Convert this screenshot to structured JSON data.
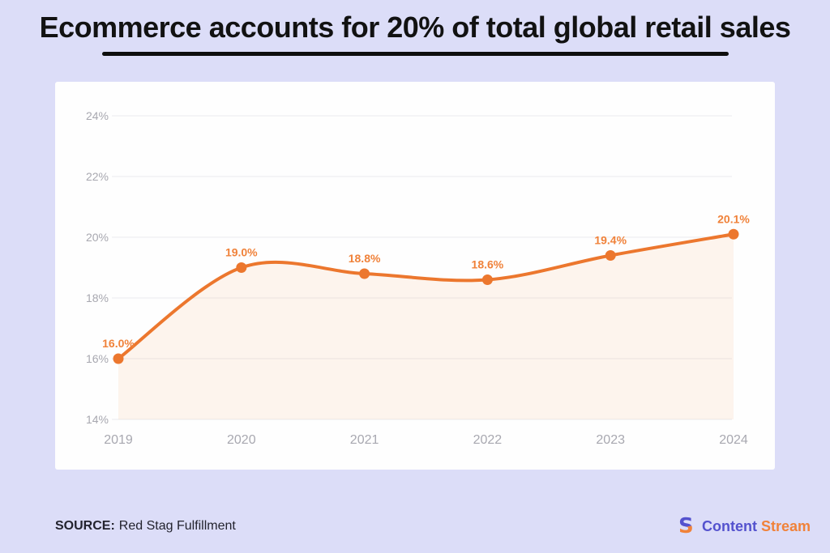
{
  "title": "Ecommerce accounts for 20% of total global retail sales",
  "footer": {
    "source_label": "SOURCE:",
    "source_value": "Red Stag Fulfillment",
    "brand_icon_glyph": "S",
    "brand_word1": "Content",
    "brand_word2": "Stream"
  },
  "colors": {
    "background": "#dcddf8",
    "card": "#fefefe",
    "accent_orange": "#EC772E",
    "label_orange": "#F0823A",
    "area_fill": "rgba(236,122,44,0.08)",
    "axis_text": "#A8A8B0",
    "gridline": "#EFEFF2",
    "title_text": "#121212",
    "brand_indigo": "#5452CE",
    "brand_orange": "#F0823A"
  },
  "chart_data": {
    "type": "line",
    "title": "Ecommerce share of total global retail sales",
    "x": [
      "2019",
      "2020",
      "2021",
      "2022",
      "2023",
      "2024"
    ],
    "values": [
      16.0,
      19.0,
      18.8,
      18.6,
      19.4,
      20.1
    ],
    "point_labels": [
      "16.0%",
      "19.0%",
      "18.8%",
      "18.6%",
      "19.4%",
      "20.1%"
    ],
    "xlabel": "",
    "ylabel": "",
    "ylim": [
      14,
      25
    ],
    "yticks": [
      14,
      16,
      18,
      20,
      22,
      24
    ],
    "ytick_labels": [
      "14%",
      "16%",
      "18%",
      "20%",
      "22%",
      "24%"
    ],
    "grid": true,
    "area_fill": true,
    "legend_position": "none"
  }
}
